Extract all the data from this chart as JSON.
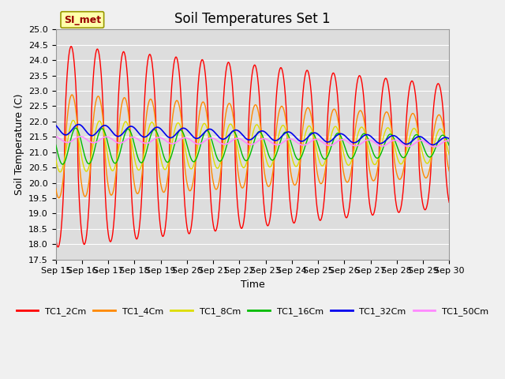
{
  "title": "Soil Temperatures Set 1",
  "xlabel": "Time",
  "ylabel": "Soil Temperature (C)",
  "ylim": [
    17.5,
    25.0
  ],
  "yticks": [
    17.5,
    18.0,
    18.5,
    19.0,
    19.5,
    20.0,
    20.5,
    21.0,
    21.5,
    22.0,
    22.5,
    23.0,
    23.5,
    24.0,
    24.5,
    25.0
  ],
  "xtick_labels": [
    "Sep 15",
    "Sep 16",
    "Sep 17",
    "Sep 18",
    "Sep 19",
    "Sep 20",
    "Sep 21",
    "Sep 22",
    "Sep 23",
    "Sep 24",
    "Sep 25",
    "Sep 26",
    "Sep 27",
    "Sep 28",
    "Sep 29",
    "Sep 30"
  ],
  "series_names": [
    "TC1_2Cm",
    "TC1_4Cm",
    "TC1_8Cm",
    "TC1_16Cm",
    "TC1_32Cm",
    "TC1_50Cm"
  ],
  "series_colors": [
    "#ff0000",
    "#ff8800",
    "#dddd00",
    "#00bb00",
    "#0000ee",
    "#ff88ff"
  ],
  "series_linewidths": [
    1.0,
    1.0,
    1.0,
    1.0,
    1.2,
    1.2
  ],
  "annotation_text": "SI_met",
  "annotation_bg": "#ffffaa",
  "annotation_border": "#999900",
  "plot_bg": "#dddddd",
  "fig_bg": "#f0f0f0",
  "grid_color": "#ffffff",
  "n_days": 15,
  "n_pts_per_day": 144,
  "base_mean": 21.2,
  "title_fontsize": 12,
  "axis_fontsize": 9,
  "tick_fontsize": 8
}
